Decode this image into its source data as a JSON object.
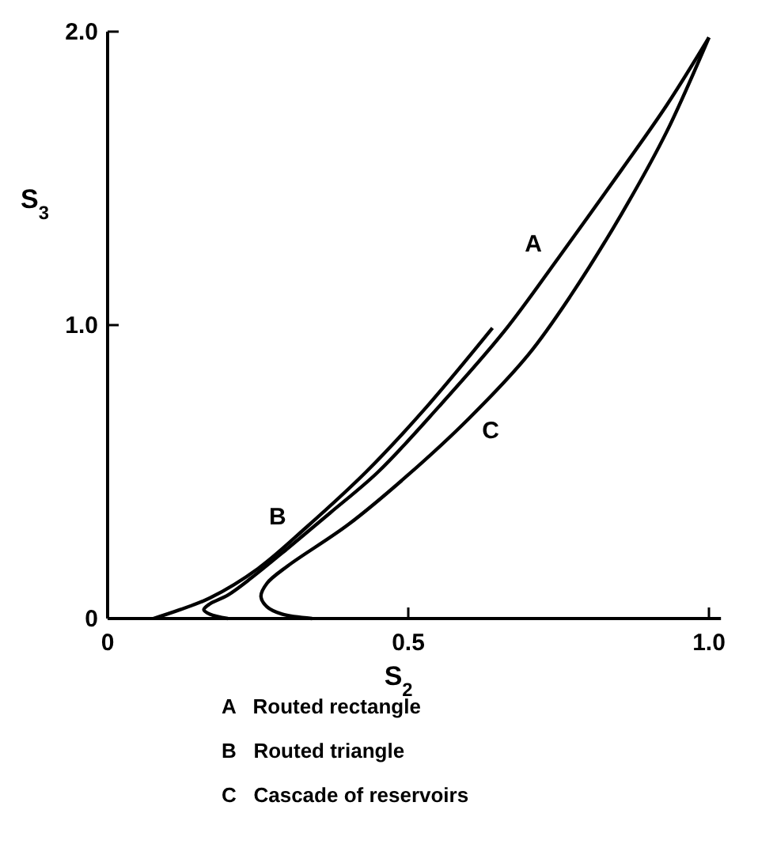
{
  "chart_data": {
    "type": "line",
    "xlabel": "S$_{2}$",
    "ylabel": "S$_{3}$",
    "xlim": [
      0,
      1.02
    ],
    "ylim": [
      0,
      2.0
    ],
    "xticks": [
      0,
      0.5,
      {
        "value": 1,
        "label": "1.0"
      }
    ],
    "yticks": [
      0,
      {
        "value": 1,
        "label": "1.0"
      },
      {
        "value": 2,
        "label": "2.0"
      }
    ],
    "grid": false,
    "marker": "none",
    "line_style": "solid",
    "series": [
      {
        "name": "A",
        "color": "#000000",
        "x": [
          0.2,
          0.17,
          0.16,
          0.17,
          0.2,
          0.24,
          0.3,
          0.37,
          0.45,
          0.55,
          0.66,
          0.75,
          0.855,
          0.93,
          1.0
        ],
        "values": [
          0,
          0.015,
          0.03,
          0.05,
          0.08,
          0.14,
          0.24,
          0.36,
          0.5,
          0.72,
          0.98,
          1.23,
          1.53,
          1.75,
          1.98
        ]
      },
      {
        "name": "B",
        "color": "#000000",
        "x": [
          0.076,
          0.12,
          0.17,
          0.25,
          0.33,
          0.43,
          0.53,
          0.64
        ],
        "values": [
          0,
          0.03,
          0.07,
          0.17,
          0.31,
          0.5,
          0.72,
          0.99
        ]
      },
      {
        "name": "C",
        "color": "#000000",
        "x": [
          0.34,
          0.29,
          0.265,
          0.255,
          0.265,
          0.3,
          0.4,
          0.5,
          0.6,
          0.7,
          0.77,
          0.855,
          0.93,
          1.0
        ],
        "values": [
          0,
          0.015,
          0.04,
          0.075,
          0.12,
          0.18,
          0.32,
          0.49,
          0.68,
          0.9,
          1.1,
          1.38,
          1.66,
          1.98
        ]
      }
    ],
    "annotations": [
      "A   Routed rectangle",
      "B   Routed triangle",
      "C   Cascade of reservoirs"
    ]
  }
}
